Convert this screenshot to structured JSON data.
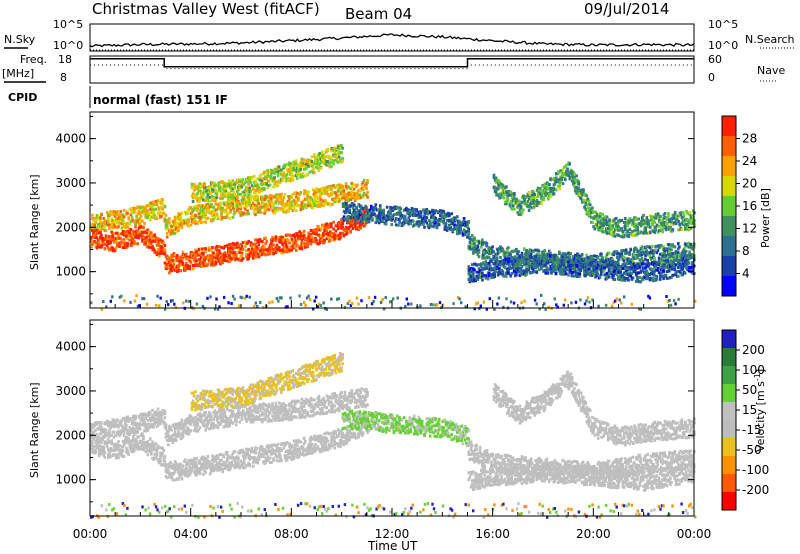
{
  "header": {
    "title": "Christmas Valley West (fitACF)",
    "beam": "Beam 04",
    "date": "09/Jul/2014"
  },
  "strip_panels": {
    "nsky_label": "N.Sky",
    "nsky_ticks": [
      "10^5",
      "10^0"
    ],
    "nsearch_label": "N.Search",
    "nsearch_ticks": [
      "10^5",
      "10^0"
    ],
    "freq_label": "Freq.",
    "freq_unit": "[MHz]",
    "freq_ticks": [
      "18",
      "8"
    ],
    "nave_label": "Nave",
    "nave_ticks": [
      "60",
      "0"
    ],
    "cpid_label": "CPID",
    "cpid_value": "normal (fast) 151 IF"
  },
  "colors": {
    "power_scale": [
      "#0000ff",
      "#1a3fa8",
      "#2f6f8f",
      "#3f8f5f",
      "#66cc33",
      "#d8d800",
      "#ffa000",
      "#ff6000",
      "#ff2000"
    ],
    "velocity_scale": [
      "#2020c0",
      "#2c7a3a",
      "#3fa045",
      "#66d133",
      "#c0c0c0",
      "#bdbdbd",
      "#e8c020",
      "#ff9000",
      "#ff5a00",
      "#ff0000"
    ],
    "grey_scatter": "#bebebe"
  },
  "chart_data": [
    {
      "type": "line",
      "panel": "N.Sky / N.Search",
      "x_unit": "Time UT (hours)",
      "ylim_log10": [
        0,
        5
      ],
      "series": [
        {
          "name": "N.Sky",
          "x": [
            0,
            2,
            4,
            6,
            8,
            10,
            12,
            14,
            16,
            18,
            20,
            22,
            24
          ],
          "values_log10": [
            0.9,
            1.2,
            1.3,
            1.5,
            1.9,
            2.4,
            3.0,
            2.6,
            1.9,
            1.3,
            1.1,
            1.2,
            1.1
          ]
        },
        {
          "name": "N.Search",
          "x": [
            0,
            24
          ],
          "values_log10": [
            0.0,
            0.0
          ]
        }
      ]
    },
    {
      "type": "line",
      "panel": "Freq. / Nave",
      "x_unit": "Time UT (hours)",
      "series": [
        {
          "name": "Freq. [MHz]",
          "x": [
            0,
            2.95,
            2.95,
            15,
            15,
            24
          ],
          "values": [
            17,
            17,
            14,
            14,
            17,
            17
          ],
          "ylim": [
            8,
            18
          ]
        },
        {
          "name": "Nave",
          "x": [
            0,
            2.95,
            2.95,
            15,
            15,
            24
          ],
          "values": [
            40,
            40,
            32,
            32,
            40,
            40
          ],
          "ylim": [
            0,
            60
          ]
        }
      ]
    },
    {
      "type": "heatmap",
      "panel": "Power",
      "ylabel": "Slant Range [km]",
      "ylim": [
        180,
        4600
      ],
      "yticks": [
        "1000",
        "2000",
        "3000",
        "4000"
      ],
      "colorbar_label": "Power [dB]",
      "colorbar_ticks": [
        "4",
        "8",
        "12",
        "16",
        "20",
        "24",
        "28"
      ],
      "colorbar_range": [
        0,
        30
      ],
      "bands": [
        {
          "t": [
            0,
            1,
            2,
            2.9,
            3,
            4,
            6,
            8,
            10,
            11
          ],
          "range_km": [
            2100,
            2200,
            2300,
            2500,
            2000,
            2300,
            2500,
            2600,
            2800,
            2900
          ],
          "power_db": 20
        },
        {
          "t": [
            0,
            1,
            2,
            2.9,
            3,
            4,
            6,
            8,
            10,
            11
          ],
          "range_km": [
            1800,
            1700,
            1900,
            1500,
            1200,
            1300,
            1500,
            1700,
            2000,
            2300
          ],
          "power_db": 27
        },
        {
          "t": [
            4,
            6,
            8,
            10
          ],
          "range_km": [
            2800,
            2900,
            3300,
            3700
          ],
          "power_db": 17
        },
        {
          "t": [
            10,
            12,
            14,
            15
          ],
          "range_km": [
            2400,
            2300,
            2200,
            2000
          ],
          "power_db": 8
        },
        {
          "t": [
            16,
            17,
            18,
            19,
            20,
            21,
            22,
            24
          ],
          "range_km": [
            3000,
            2500,
            2800,
            3300,
            2200,
            2000,
            2100,
            2200
          ],
          "power_db": 12
        },
        {
          "t": [
            15,
            16,
            18,
            20,
            22,
            24
          ],
          "range_km": [
            1700,
            1400,
            1300,
            1200,
            1400,
            1500
          ],
          "power_db": 10
        },
        {
          "t": [
            15,
            16,
            18,
            20,
            22,
            24
          ],
          "range_km": [
            1000,
            1100,
            1200,
            1100,
            1000,
            1200
          ],
          "power_db": 7
        }
      ]
    },
    {
      "type": "heatmap",
      "panel": "Velocity",
      "ylabel": "Slant Range [km]",
      "ylim": [
        180,
        4600
      ],
      "yticks": [
        "1000",
        "2000",
        "3000",
        "4000"
      ],
      "colorbar_label": "Velocity [m s^-1]",
      "colorbar_ticks": [
        "200",
        "100",
        "50",
        "15",
        "-15",
        "-50",
        "-100",
        "-200"
      ],
      "colorbar_range": [
        -250,
        250
      ],
      "xlabel": "Time UT",
      "xticks": [
        "00:00",
        "04:00",
        "08:00",
        "12:00",
        "16:00",
        "20:00",
        "00:00"
      ],
      "xlim_hours": [
        0,
        24
      ],
      "bands": [
        {
          "t": [
            0,
            1,
            2,
            2.9,
            3,
            4,
            6,
            8,
            10,
            11
          ],
          "range_km": [
            2100,
            2200,
            2300,
            2500,
            2000,
            2300,
            2500,
            2600,
            2800,
            2900
          ],
          "velocity": 0
        },
        {
          "t": [
            0,
            1,
            2,
            2.9,
            3,
            4,
            6,
            8,
            10,
            11
          ],
          "range_km": [
            1800,
            1700,
            1900,
            1500,
            1200,
            1300,
            1500,
            1700,
            2000,
            2300
          ],
          "velocity": 0
        },
        {
          "t": [
            4,
            6,
            8,
            10
          ],
          "range_km": [
            2800,
            2900,
            3300,
            3700
          ],
          "velocity": -60
        },
        {
          "t": [
            10,
            12,
            14,
            15
          ],
          "range_km": [
            2400,
            2300,
            2200,
            2000
          ],
          "velocity": 60
        },
        {
          "t": [
            16,
            17,
            18,
            19,
            20,
            21,
            22,
            24
          ],
          "range_km": [
            3000,
            2500,
            2800,
            3300,
            2200,
            2000,
            2100,
            2200
          ],
          "velocity": 0
        },
        {
          "t": [
            15,
            16,
            18,
            20,
            22,
            24
          ],
          "range_km": [
            1700,
            1400,
            1300,
            1200,
            1400,
            1500
          ],
          "velocity": 0
        },
        {
          "t": [
            15,
            16,
            18,
            20,
            22,
            24
          ],
          "range_km": [
            1000,
            1100,
            1200,
            1100,
            1000,
            1200
          ],
          "velocity": 0
        }
      ]
    }
  ]
}
